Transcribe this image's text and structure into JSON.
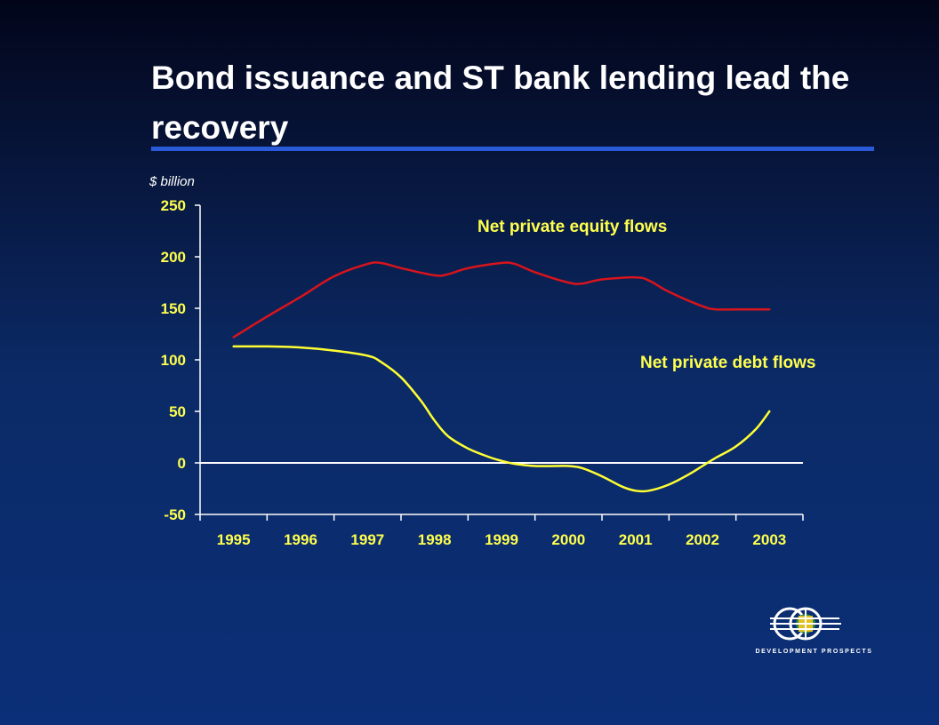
{
  "slide": {
    "title": "Bond issuance and ST bank lending lead the recovery"
  },
  "logo": {
    "text": "DEVELOPMENT PROSPECTS"
  },
  "chart_data": {
    "type": "line",
    "ylabel": "$ billion",
    "categories": [
      "1995",
      "1996",
      "1997",
      "1998",
      "1999",
      "2000",
      "2001",
      "2002",
      "2003"
    ],
    "ylim": [
      -50,
      250
    ],
    "yticks": [
      250,
      200,
      150,
      100,
      50,
      0,
      -50
    ],
    "grid": false,
    "series": [
      {
        "name": "Net private equity flows",
        "color": "#d8141c",
        "x": [
          1995.0,
          1995.5,
          1996.0,
          1996.5,
          1997.0,
          1997.2,
          1997.5,
          1998.0,
          1998.2,
          1998.5,
          1999.0,
          1999.2,
          1999.5,
          2000.0,
          2000.2,
          2000.5,
          2001.0,
          2001.2,
          2001.5,
          2002.0,
          2002.2,
          2002.5,
          2003.0
        ],
        "values": [
          122,
          142,
          161,
          181,
          193,
          194,
          189,
          182,
          183,
          189,
          194,
          193,
          185,
          175,
          174,
          178,
          180,
          177,
          166,
          152,
          149,
          149,
          149
        ]
      },
      {
        "name": "Net private debt flows",
        "color": "#ffff33",
        "x": [
          1995.0,
          1995.5,
          1996.0,
          1996.5,
          1997.0,
          1997.2,
          1997.5,
          1997.8,
          1998.0,
          1998.2,
          1998.5,
          1998.8,
          1999.0,
          1999.2,
          1999.5,
          1999.8,
          2000.0,
          2000.2,
          2000.5,
          2000.8,
          2001.0,
          2001.2,
          2001.5,
          2001.8,
          2002.0,
          2002.2,
          2002.5,
          2002.8,
          2003.0
        ],
        "values": [
          113,
          113,
          112,
          109,
          104,
          98,
          83,
          60,
          41,
          26,
          14,
          6,
          2,
          -1,
          -3,
          -3,
          -3,
          -5,
          -13,
          -23,
          -27,
          -27,
          -21,
          -11,
          -3,
          5,
          16,
          33,
          50
        ]
      }
    ]
  }
}
